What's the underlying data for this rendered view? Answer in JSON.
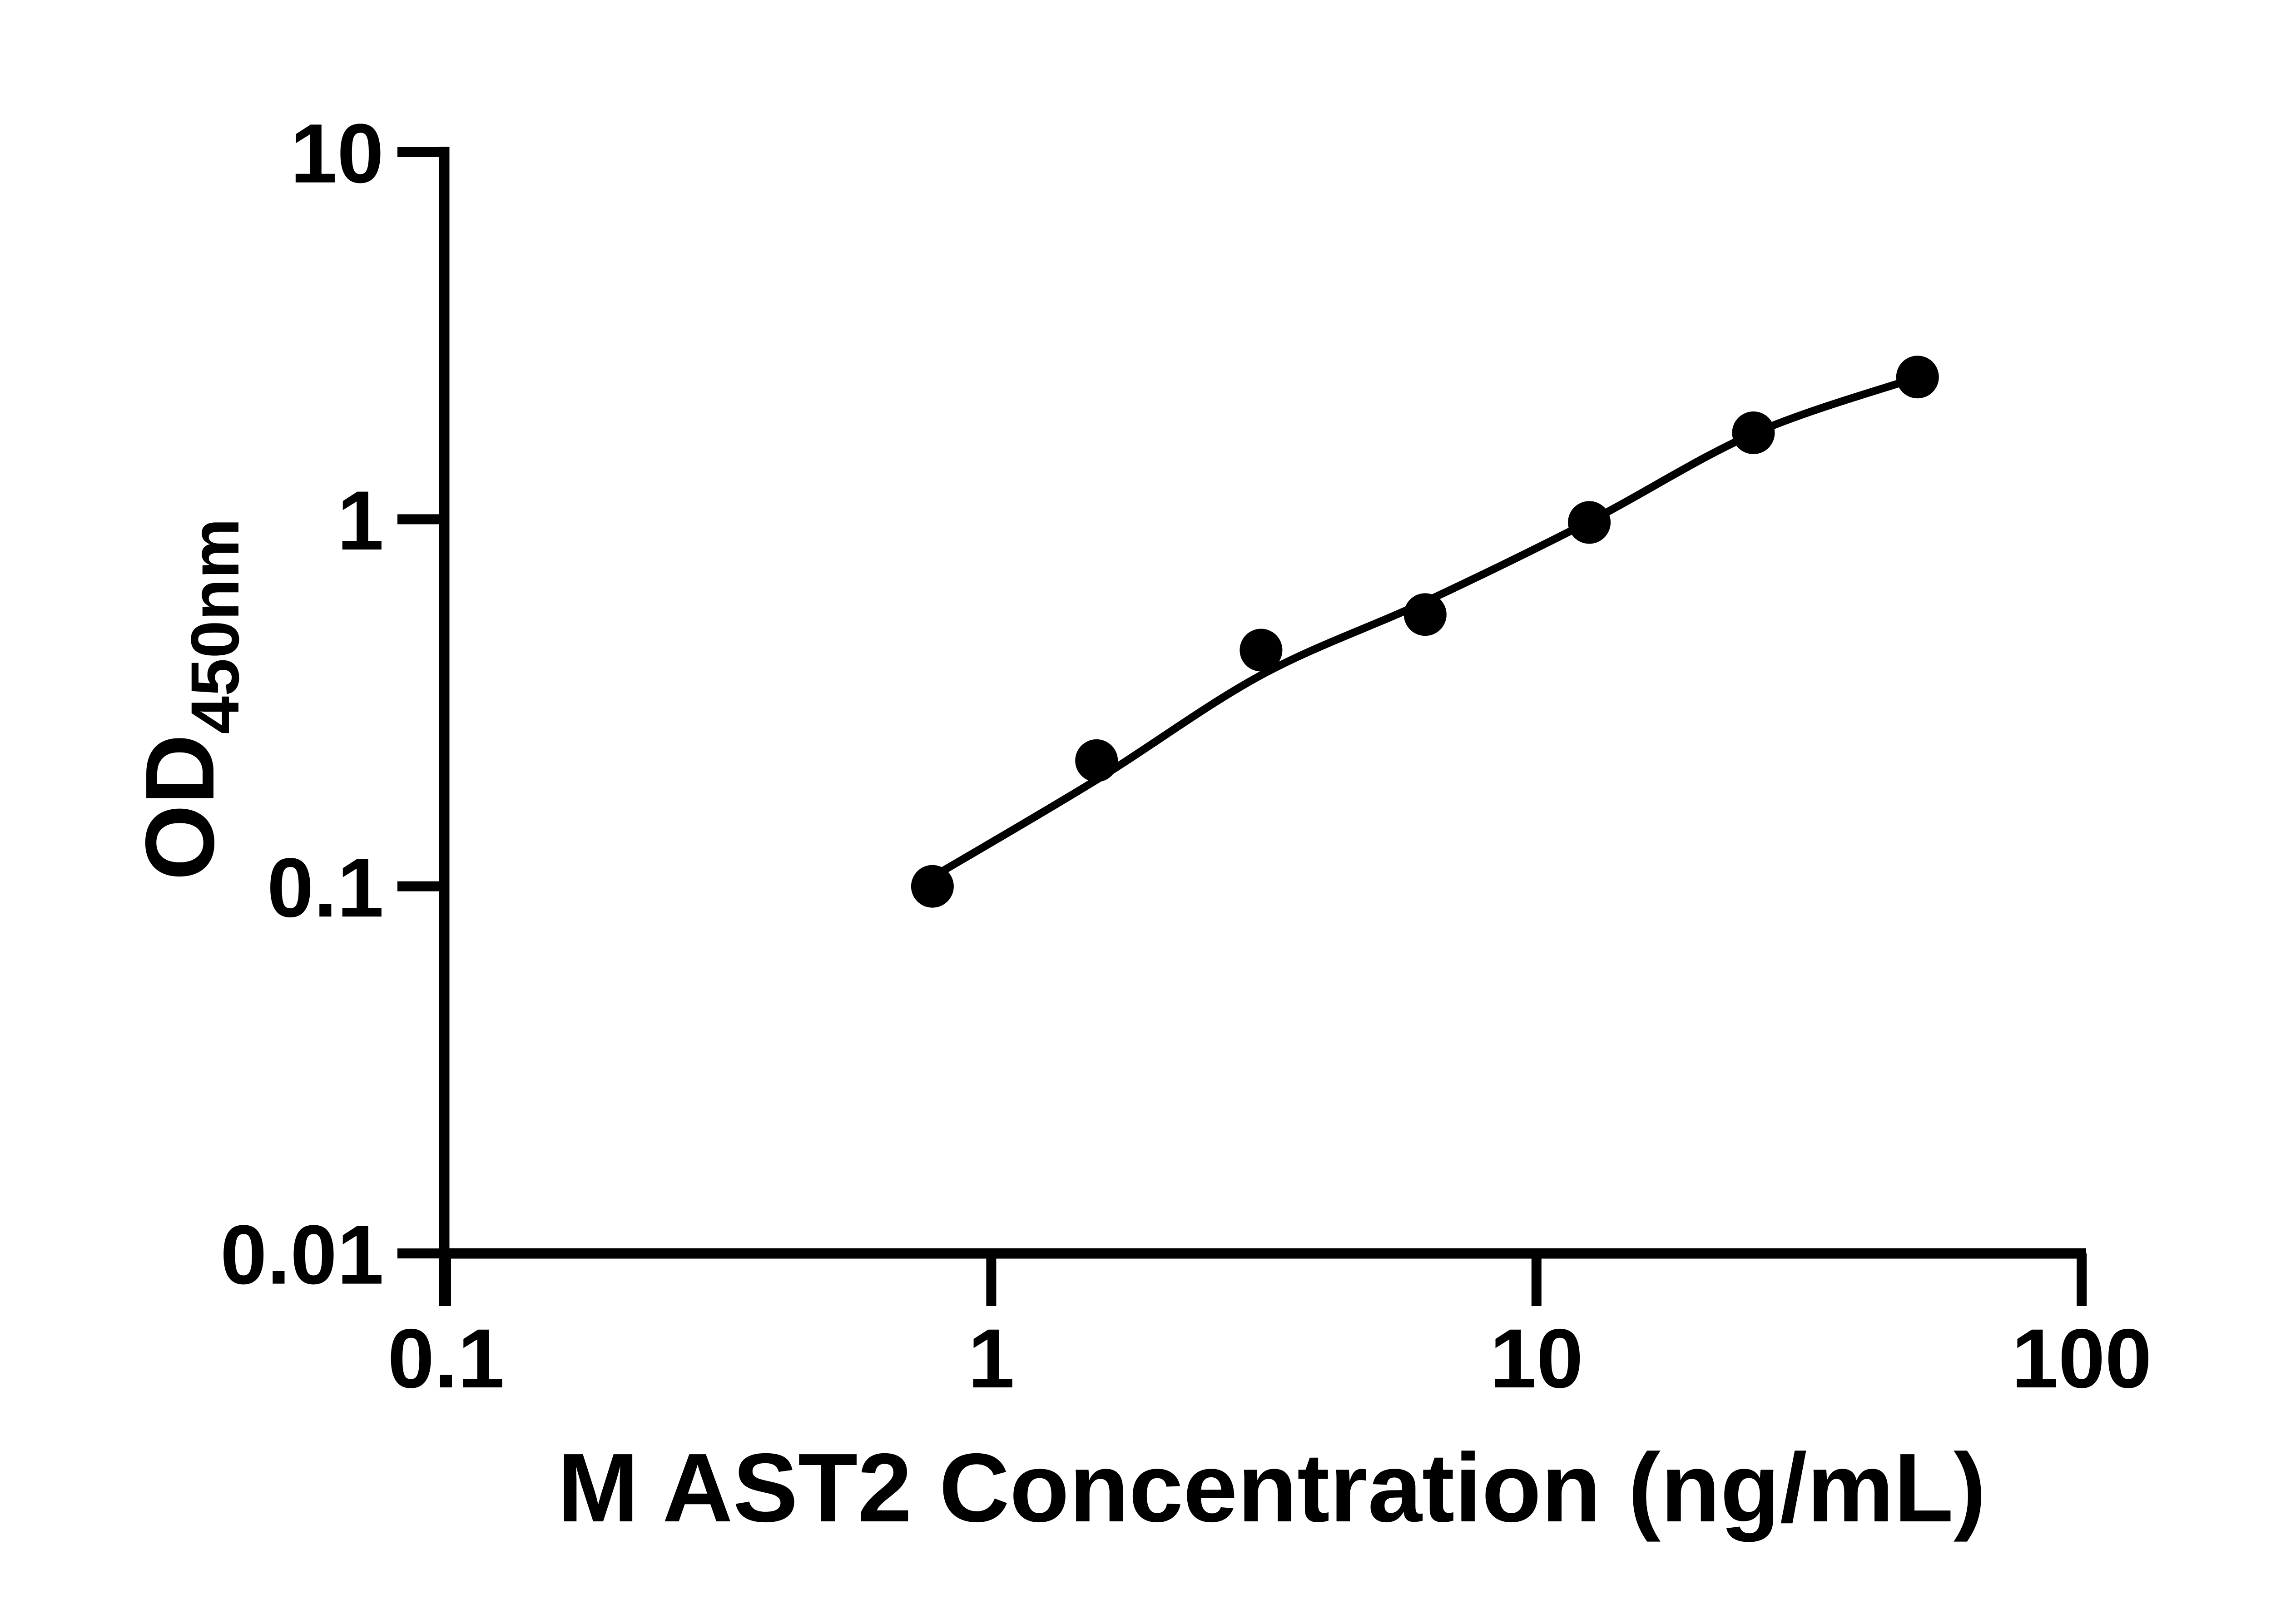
{
  "figure": {
    "background": "#ffffff",
    "ink": "#000000"
  },
  "chart_data": {
    "type": "scatter",
    "title": "",
    "xlabel": "M AST2 Concentration (ng/mL)",
    "ylabel_main": "OD",
    "ylabel_sub": "450nm",
    "x_scale": "log",
    "y_scale": "log",
    "xlim": [
      0.1,
      100
    ],
    "ylim": [
      0.01,
      10
    ],
    "grid": false,
    "legend": null,
    "x_ticks": [
      {
        "value": 0.1,
        "label": "0.1"
      },
      {
        "value": 1,
        "label": "1"
      },
      {
        "value": 10,
        "label": "10"
      },
      {
        "value": 100,
        "label": "100"
      }
    ],
    "y_ticks": [
      {
        "value": 10,
        "label": "10"
      },
      {
        "value": 1,
        "label": "1"
      },
      {
        "value": 0.1,
        "label": "0.1"
      },
      {
        "value": 0.01,
        "label": "0.01"
      }
    ],
    "series": [
      {
        "name": "standard-points",
        "type": "scatter",
        "marker": "circle",
        "color": "#000000",
        "x": [
          0.78,
          1.56,
          3.125,
          6.25,
          12.5,
          25,
          50
        ],
        "y": [
          0.1,
          0.22,
          0.44,
          0.55,
          0.98,
          1.72,
          2.44
        ]
      },
      {
        "name": "fitted-curve",
        "type": "line",
        "color": "#000000",
        "x": [
          0.78,
          1.56,
          3.125,
          6.25,
          12.5,
          25,
          50
        ],
        "y": [
          0.106,
          0.195,
          0.376,
          0.596,
          0.986,
          1.711,
          2.435
        ]
      }
    ]
  }
}
